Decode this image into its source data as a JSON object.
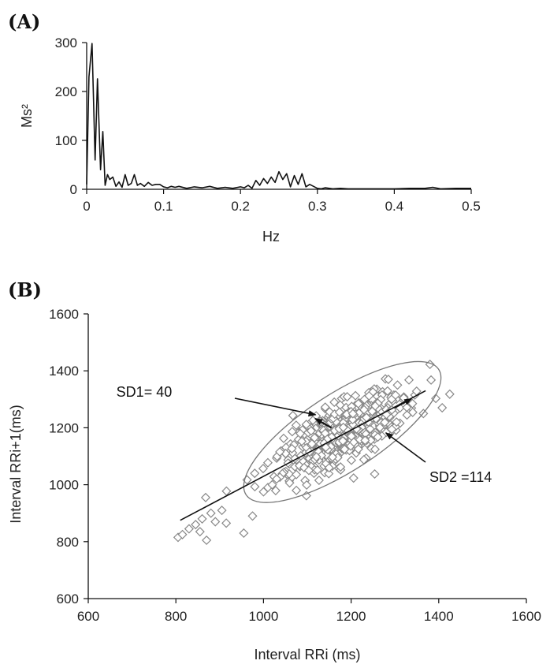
{
  "chart_data": [
    {
      "panel": "(A)",
      "type": "line",
      "xlabel": "Hz",
      "ylabel": "Ms²",
      "xlim": [
        0,
        0.5
      ],
      "ylim": [
        0,
        300
      ],
      "xticks": [
        0,
        0.1,
        0.2,
        0.3,
        0.4,
        0.5
      ],
      "xtick_labels": [
        "0",
        "0.1",
        "0.2",
        "0.3",
        "0.4",
        "0.5"
      ],
      "yticks": [
        0,
        100,
        200,
        300
      ],
      "ytick_labels": [
        "0",
        "100",
        "200",
        "300"
      ],
      "grid": false,
      "series": [
        {
          "x": [
            0,
            0.003,
            0.007,
            0.011,
            0.014,
            0.018,
            0.021,
            0.024,
            0.027,
            0.03,
            0.034,
            0.038,
            0.042,
            0.046,
            0.05,
            0.054,
            0.058,
            0.062,
            0.066,
            0.07,
            0.075,
            0.08,
            0.085,
            0.09,
            0.095,
            0.1,
            0.105,
            0.11,
            0.115,
            0.12,
            0.13,
            0.14,
            0.15,
            0.16,
            0.17,
            0.18,
            0.19,
            0.2,
            0.205,
            0.21,
            0.215,
            0.22,
            0.225,
            0.23,
            0.235,
            0.24,
            0.245,
            0.25,
            0.255,
            0.26,
            0.265,
            0.27,
            0.275,
            0.28,
            0.285,
            0.29,
            0.295,
            0.3,
            0.305,
            0.31,
            0.32,
            0.33,
            0.34,
            0.35,
            0.36,
            0.38,
            0.4,
            0.42,
            0.44,
            0.45,
            0.46,
            0.48,
            0.5
          ],
          "y": [
            10,
            230,
            298,
            60,
            226,
            40,
            118,
            8,
            30,
            20,
            25,
            6,
            15,
            4,
            30,
            8,
            12,
            30,
            8,
            12,
            6,
            14,
            8,
            10,
            10,
            5,
            3,
            6,
            4,
            6,
            2,
            5,
            3,
            6,
            2,
            4,
            2,
            5,
            3,
            8,
            2,
            18,
            8,
            22,
            12,
            25,
            14,
            36,
            20,
            32,
            5,
            28,
            10,
            32,
            5,
            10,
            6,
            2,
            1,
            3,
            1,
            2,
            1,
            1,
            1,
            1,
            1,
            2,
            2,
            4,
            1,
            2,
            2
          ]
        }
      ]
    },
    {
      "panel": "(B)",
      "type": "scatter",
      "xlabel": "Interval RRi (ms)",
      "ylabel": "Interval RRi+1(ms)",
      "xlim": [
        600,
        1600
      ],
      "ylim": [
        600,
        1600
      ],
      "xticks": [
        600,
        800,
        1000,
        1200,
        1400,
        1600
      ],
      "xtick_labels": [
        "600",
        "800",
        "1000",
        "1200",
        "1400",
        "1600"
      ],
      "yticks": [
        600,
        800,
        1000,
        1200,
        1400,
        1600
      ],
      "ytick_labels": [
        "600",
        "800",
        "1000",
        "1200",
        "1400",
        "1600"
      ],
      "grid": false,
      "marker": "diamond",
      "marker_color": "#888888",
      "points_note_count": 560,
      "outliers": [
        [
          805,
          815
        ],
        [
          815,
          825
        ],
        [
          830,
          845
        ],
        [
          845,
          860
        ],
        [
          855,
          835
        ],
        [
          860,
          880
        ],
        [
          868,
          955
        ],
        [
          870,
          805
        ],
        [
          880,
          900
        ],
        [
          890,
          870
        ],
        [
          905,
          910
        ],
        [
          915,
          865
        ],
        [
          955,
          830
        ],
        [
          975,
          890
        ],
        [
          980,
          1040
        ],
        [
          1000,
          975
        ],
        [
          1010,
          990
        ],
        [
          1020,
          1000
        ],
        [
          1030,
          1020
        ],
        [
          1075,
          980
        ],
        [
          1105,
          1115
        ],
        [
          1365,
          1250
        ],
        [
          1340,
          1285
        ],
        [
          1320,
          1305
        ],
        [
          1285,
          1370
        ]
      ],
      "cluster": {
        "center": [
          1185,
          1185
        ],
        "sd_along_identity": 114,
        "sd_perpendicular": 40
      },
      "regression_line": {
        "from": [
          810,
          875
        ],
        "to": [
          1370,
          1330
        ]
      },
      "ellipse": {
        "center": [
          1180,
          1185
        ],
        "sd1": 40,
        "sd2": 114
      },
      "annotations": [
        {
          "text": "SD1= 40",
          "anchor": [
            880,
            1370
          ],
          "arrow_to": [
            1110,
            1240
          ]
        },
        {
          "text": "SD2 =114",
          "anchor": [
            1300,
            1060
          ],
          "arrow_to": [
            1200,
            1210
          ]
        }
      ]
    }
  ]
}
